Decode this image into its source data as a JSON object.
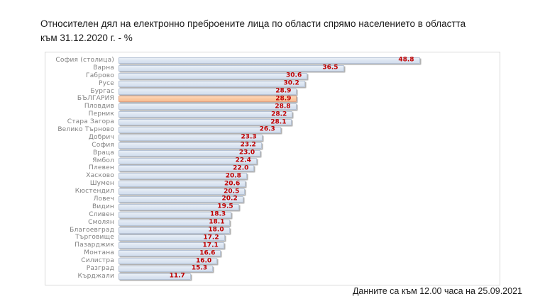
{
  "title": "Относителен дял на електронно преброените лица по области спрямо населението в областта към 31.12.2020 г. - %",
  "footnote": "Данните са към 12.00 часа на 25.09.2021",
  "colors": {
    "bar_fill": "#dde6f2",
    "bar_border": "#b6c3d6",
    "highlight_fill": "#fac8a2",
    "highlight_border": "#dfa183",
    "value_text": "#c00000",
    "category_text": "#808080"
  },
  "chart_data": {
    "type": "bar",
    "orientation": "horizontal",
    "title": "Относителен дял на електронно преброените лица по области спрямо населението в областта към 31.12.2020 г. - %",
    "xlabel": "",
    "ylabel": "",
    "xlim": [
      0,
      60
    ],
    "grid": false,
    "legend": false,
    "highlight_category": "БЪЛГАРИЯ",
    "highlight_index": 5,
    "categories": [
      "София (столица)",
      "Варна",
      "Габрово",
      "Русе",
      "Бургас",
      "БЪЛГАРИЯ",
      "Пловдив",
      "Перник",
      "Стара Загора",
      "Велико Търново",
      "Добрич",
      "София",
      "Враца",
      "Ямбол",
      "Плевен",
      "Хасково",
      "Шумен",
      "Кюстендил",
      "Ловеч",
      "Видин",
      "Сливен",
      "Смолян",
      "Благоевград",
      "Търговище",
      "Пазарджик",
      "Монтана",
      "Силистра",
      "Разград",
      "Кърджали"
    ],
    "values": [
      48.8,
      36.5,
      30.6,
      30.2,
      28.9,
      28.9,
      28.8,
      28.2,
      28.1,
      26.3,
      23.3,
      23.2,
      23.0,
      22.4,
      22.0,
      20.8,
      20.6,
      20.5,
      20.2,
      19.5,
      18.3,
      18.1,
      18.0,
      17.2,
      17.1,
      16.6,
      16.0,
      15.3,
      11.7
    ]
  }
}
